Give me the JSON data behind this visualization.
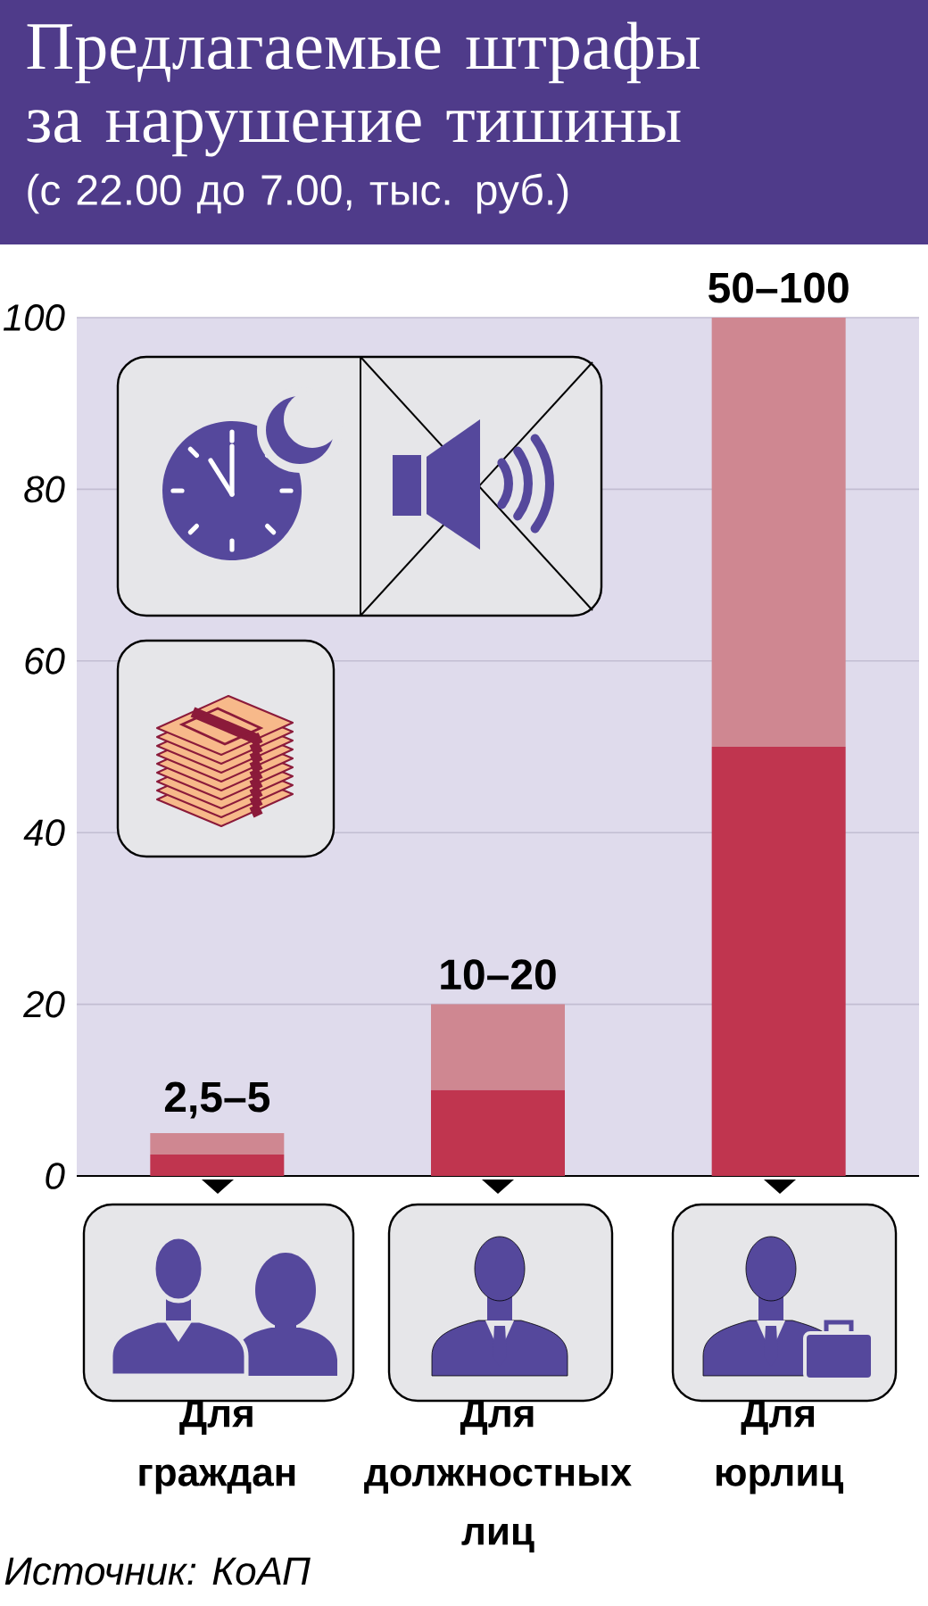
{
  "chart_data": {
    "type": "bar",
    "title": "Предлагаемые штрафы за нарушение тишины",
    "subtitle": "(с 22.00 до 7.00, тыс. руб.)",
    "categories": [
      "Для граждан",
      "Для должностных лиц",
      "Для юрлиц"
    ],
    "stacked": true,
    "series": [
      {
        "color": "#c0354f",
        "values": [
          2.5,
          10,
          50
        ]
      },
      {
        "color": "#cf8791",
        "values": [
          2.5,
          10,
          50
        ]
      }
    ],
    "totals": [
      "2,5–5",
      "10–20",
      "50–100"
    ],
    "ylim": [
      0,
      100
    ],
    "yticks": [
      0,
      20,
      40,
      60,
      80,
      100
    ],
    "grid": "y",
    "annotations": [
      "Источник: КоАП"
    ]
  }
}
